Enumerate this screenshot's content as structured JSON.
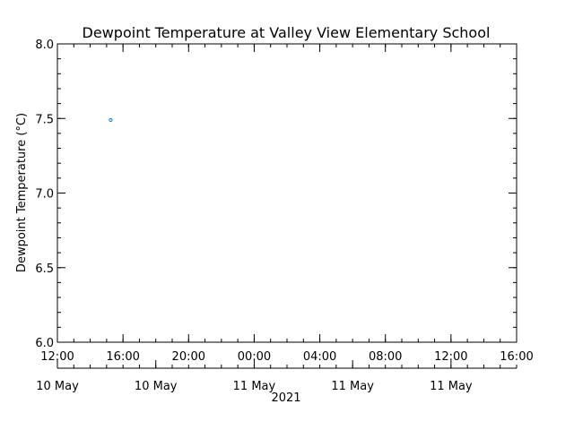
{
  "chart_data": {
    "type": "scatter",
    "title": "Dewpoint Temperature at Valley View Elementary School",
    "ylabel": "Dewpoint Temperature (°C)",
    "xlabel": "2021",
    "ylim": [
      6.0,
      8.0
    ],
    "yticks": [
      6.0,
      6.5,
      7.0,
      7.5,
      8.0
    ],
    "ytick_labels": [
      "6.0",
      "6.5",
      "7.0",
      "7.5",
      "8.0"
    ],
    "xlim": [
      "2021-05-10 12:00",
      "2021-05-11 16:00"
    ],
    "xticks": [
      "2021-05-10 12:00",
      "2021-05-10 16:00",
      "2021-05-10 20:00",
      "2021-05-11 00:00",
      "2021-05-11 04:00",
      "2021-05-11 08:00",
      "2021-05-11 12:00",
      "2021-05-11 16:00"
    ],
    "xtick_labels": [
      "12:00",
      "16:00",
      "20:00",
      "00:00",
      "04:00",
      "08:00",
      "12:00",
      "16:00"
    ],
    "date_ticks": [
      "2021-05-10 12:00",
      "2021-05-10 18:00",
      "2021-05-11 00:00",
      "2021-05-11 06:00",
      "2021-05-11 12:00"
    ],
    "date_labels": [
      "10 May",
      "10 May",
      "11 May",
      "11 May",
      "11 May"
    ],
    "grid": false,
    "series": [
      {
        "color": "#1f6fd1",
        "points": [
          {
            "x": "2021-05-10 15:15",
            "y": 7.49
          }
        ]
      }
    ]
  }
}
